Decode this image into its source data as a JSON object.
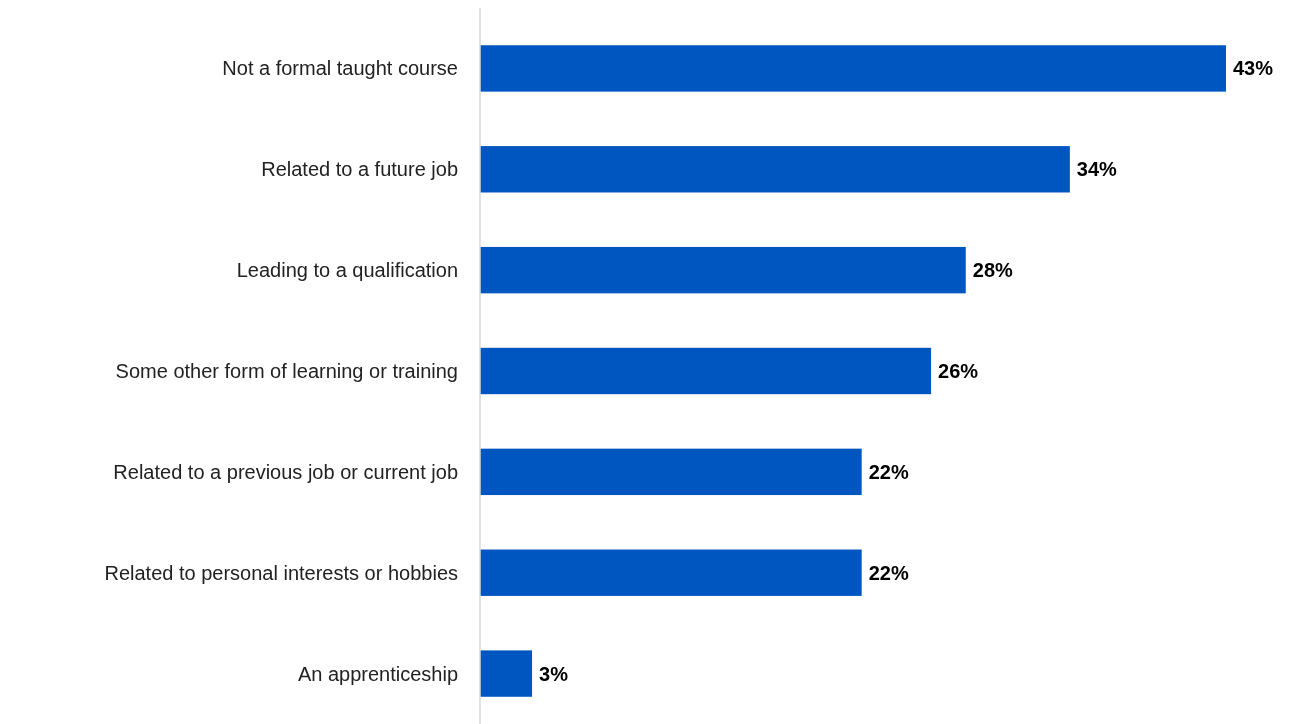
{
  "chart_data": {
    "type": "bar",
    "orientation": "horizontal",
    "categories": [
      "Not a formal taught course",
      "Related to a future job",
      "Leading to a qualification",
      "Some other form of learning or training",
      "Related to a previous job or current job",
      "Related to personal interests or hobbies",
      "An apprenticeship"
    ],
    "values": [
      43,
      34,
      28,
      26,
      22,
      22,
      3
    ],
    "value_labels": [
      "43%",
      "34%",
      "28%",
      "26%",
      "22%",
      "22%",
      "3%"
    ],
    "color": "#0056c0"
  }
}
